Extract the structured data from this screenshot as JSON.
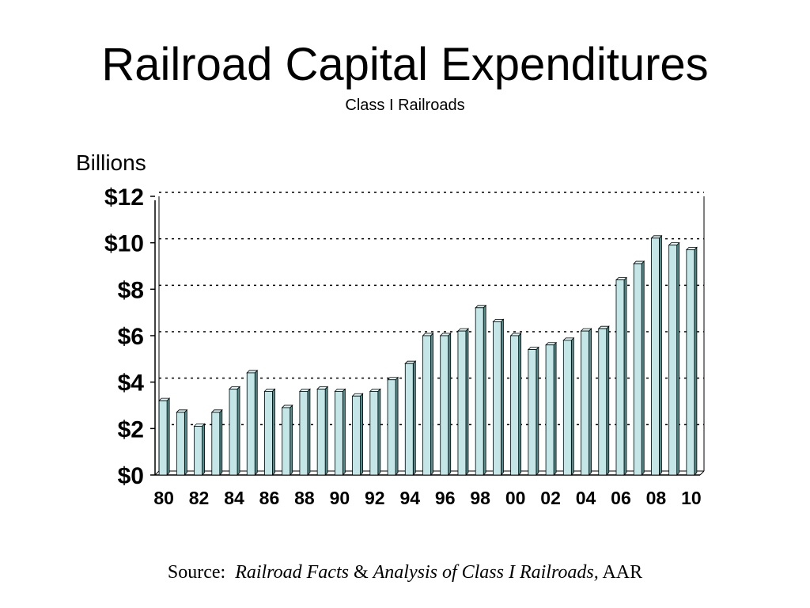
{
  "colors": {
    "bar_front": "#c5e6e6",
    "bar_side": "#4f8f8f",
    "bar_top": "#e4f4f4",
    "bar_edge": "#000000",
    "grid": "#000000"
  },
  "chart_data": {
    "type": "bar",
    "title": "Railroad Capital Expenditures",
    "subtitle": "Class I Railroads",
    "unit_label": "Billions",
    "ylim": [
      0,
      12
    ],
    "y_ticks": [
      0,
      2,
      4,
      6,
      8,
      10,
      12
    ],
    "y_tick_labels": [
      "$0",
      "$2",
      "$4",
      "$6",
      "$8",
      "$10",
      "$12"
    ],
    "grid": "dotted horizontal",
    "categories": [
      "80",
      "81",
      "82",
      "83",
      "84",
      "85",
      "86",
      "87",
      "88",
      "89",
      "90",
      "91",
      "92",
      "93",
      "94",
      "95",
      "96",
      "97",
      "98",
      "99",
      "00",
      "01",
      "02",
      "03",
      "04",
      "05",
      "06",
      "07",
      "08",
      "09",
      "10"
    ],
    "x_tick_labels": [
      "80",
      "82",
      "84",
      "86",
      "88",
      "90",
      "92",
      "94",
      "96",
      "98",
      "00",
      "02",
      "04",
      "06",
      "08",
      "10"
    ],
    "values": [
      3.2,
      2.7,
      2.1,
      2.7,
      3.7,
      4.4,
      3.6,
      2.9,
      3.6,
      3.7,
      3.6,
      3.4,
      3.6,
      4.1,
      4.8,
      6.0,
      6.0,
      6.2,
      7.2,
      6.6,
      6.0,
      5.4,
      5.6,
      5.8,
      6.2,
      6.3,
      8.4,
      9.1,
      10.2,
      9.9,
      9.7
    ]
  },
  "source": {
    "prefix": "Source:",
    "title1": "Railroad Facts",
    "amp": "&",
    "title2": "Analysis of Class I Railroads,",
    "suffix": "AAR"
  }
}
